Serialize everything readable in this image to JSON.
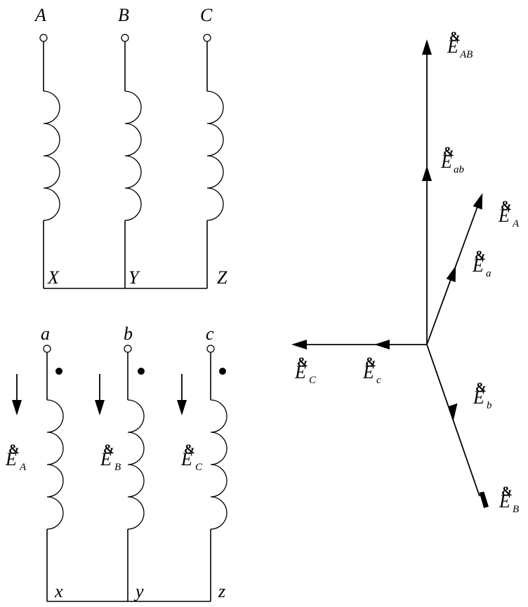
{
  "primary": {
    "terminals_top": [
      "A",
      "B",
      "C"
    ],
    "terminals_bottom": [
      "X",
      "Y",
      "Z"
    ]
  },
  "secondary": {
    "terminals_top": [
      "a",
      "b",
      "c"
    ],
    "terminals_bottom": [
      "x",
      "y",
      "z"
    ],
    "emf_labels": [
      {
        "main": "E",
        "accent": "&",
        "sub": "A"
      },
      {
        "main": "E",
        "accent": "&",
        "sub": "B"
      },
      {
        "main": "E",
        "accent": "&",
        "sub": "C"
      }
    ]
  },
  "phasors": [
    {
      "main": "E",
      "accent": "&",
      "sub": "AB"
    },
    {
      "main": "E",
      "accent": "&",
      "sub": "ab"
    },
    {
      "main": "E",
      "accent": "&",
      "sub": "A"
    },
    {
      "main": "E",
      "accent": "&",
      "sub": "a"
    },
    {
      "main": "E",
      "accent": "&",
      "sub": "C"
    },
    {
      "main": "E",
      "accent": "&",
      "sub": "c"
    },
    {
      "main": "E",
      "accent": "&",
      "sub": "b"
    },
    {
      "main": "E",
      "accent": "&",
      "sub": "B"
    }
  ]
}
